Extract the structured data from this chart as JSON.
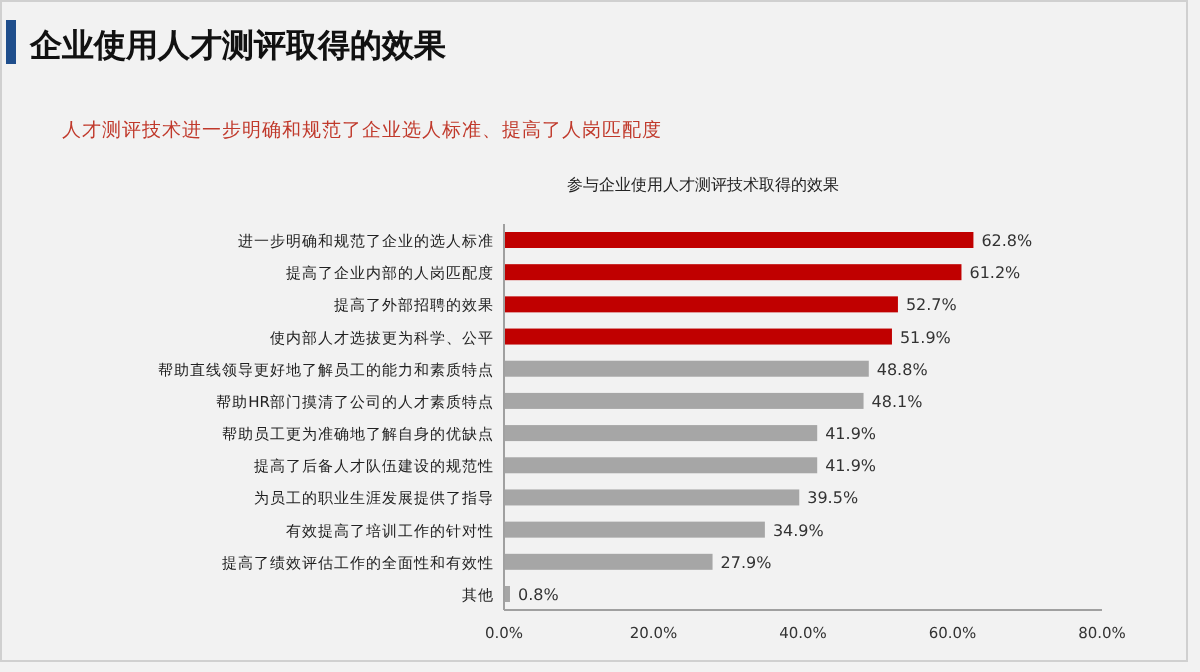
{
  "chart_data": {
    "type": "bar",
    "orientation": "horizontal",
    "title": "企业使用人才测评取得的效果",
    "subtitle": "人才测评技术进一步明确和规范了企业选人标准、提高了人岗匹配度",
    "annotations": [
      "参与企业使用人才测评技术取得的效果"
    ],
    "categories": [
      "进一步明确和规范了企业的选人标准",
      "提高了企业内部的人岗匹配度",
      "提高了外部招聘的效果",
      "使内部人才选拔更为科学、公平",
      "帮助直线领导更好地了解员工的能力和素质特点",
      "帮助HR部门摸清了公司的人才素质特点",
      "帮助员工更为准确地了解自身的优缺点",
      "提高了后备人才队伍建设的规范性",
      "为员工的职业生涯发展提供了指导",
      "有效提高了培训工作的针对性",
      "提高了绩效评估工作的全面性和有效性",
      "其他"
    ],
    "values": [
      62.8,
      61.2,
      52.7,
      51.9,
      48.8,
      48.1,
      41.9,
      41.9,
      39.5,
      34.9,
      27.9,
      0.8
    ],
    "value_labels": [
      "62.8%",
      "61.2%",
      "52.7%",
      "51.9%",
      "48.8%",
      "48.1%",
      "41.9%",
      "41.9%",
      "39.5%",
      "34.9%",
      "27.9%",
      "0.8%"
    ],
    "colors": [
      "#c00000",
      "#c00000",
      "#c00000",
      "#c00000",
      "#a6a6a6",
      "#a6a6a6",
      "#a6a6a6",
      "#a6a6a6",
      "#a6a6a6",
      "#a6a6a6",
      "#a6a6a6",
      "#a6a6a6"
    ],
    "xlim": [
      0,
      80
    ],
    "xticks": [
      {
        "value": 0,
        "label": "0.0%"
      },
      {
        "value": 20,
        "label": "20.0%"
      },
      {
        "value": 40,
        "label": "40.0%"
      },
      {
        "value": 60,
        "label": "60.0%"
      },
      {
        "value": 80,
        "label": "80.0%"
      }
    ],
    "tick_labels": "x"
  }
}
